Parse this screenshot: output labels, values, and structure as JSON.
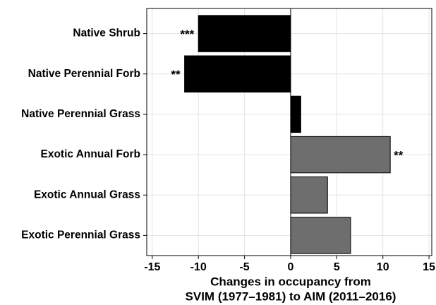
{
  "chart_data": {
    "type": "barh",
    "categories": [
      "Native Shrub",
      "Native Perennial Forb",
      "Native Perennial Grass",
      "Exotic Annual Forb",
      "Exotic Annual Grass",
      "Exotic Perennial Grass"
    ],
    "values": [
      -10.0,
      -11.5,
      1.1,
      10.8,
      4.0,
      6.5
    ],
    "colors": [
      "#000000",
      "#000000",
      "#000000",
      "#6e6e6e",
      "#6e6e6e",
      "#6e6e6e"
    ],
    "significance": [
      "***",
      "**",
      null,
      "**",
      null,
      null
    ],
    "xlabel": [
      "Changes in occupancy from",
      "SVIM (1977–1981) to AIM (2011–2016)"
    ],
    "xlim": [
      -15.6,
      15.3
    ],
    "xticks": [
      -15,
      -10,
      -5,
      0,
      5,
      10,
      15
    ],
    "grid": true
  }
}
